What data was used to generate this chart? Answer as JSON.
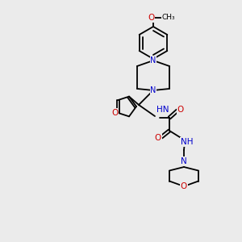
{
  "background_color": "#ebebeb",
  "bond_color": "#000000",
  "N_color": "#0000cc",
  "O_color": "#cc0000",
  "text_color": "#000000",
  "figsize": [
    3.0,
    3.0
  ],
  "dpi": 100,
  "lw": 1.3,
  "fs": 7.0,
  "methoxy_label": "O",
  "methoxy_ch3": "CH₃",
  "furan_O_label": "O",
  "N_label": "N",
  "HN_label": "HN",
  "NH_label": "NH",
  "O_label": "O"
}
